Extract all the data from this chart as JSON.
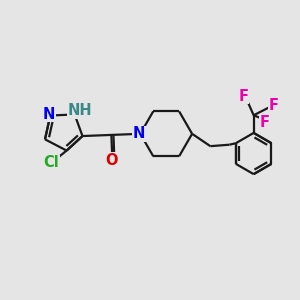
{
  "background_color": "#e5e5e5",
  "bond_color": "#1a1a1a",
  "bond_width": 1.6,
  "atom_colors": {
    "N": "#0000ee",
    "NH": "#3a8888",
    "O": "#dd0000",
    "Cl": "#22aa22",
    "F": "#ee00aa",
    "C": "#1a1a1a"
  },
  "font_size": 10.5
}
